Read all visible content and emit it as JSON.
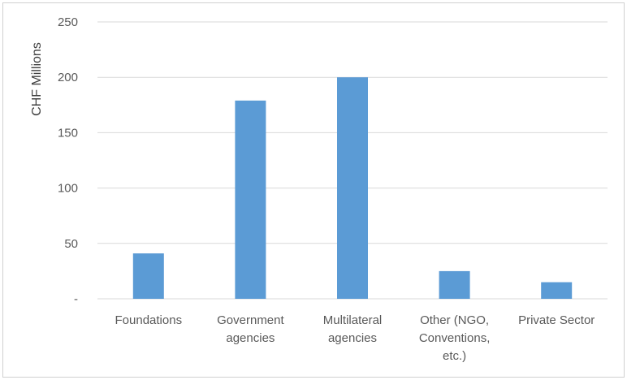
{
  "chart_data": {
    "type": "bar",
    "title": "",
    "xlabel": "",
    "ylabel": "CHF Millions",
    "ylim": [
      0,
      250
    ],
    "yticks": [
      0,
      50,
      100,
      150,
      200,
      250
    ],
    "ytick_labels": [
      "-",
      "50",
      "100",
      "150",
      "200",
      "250"
    ],
    "grid": true,
    "legend": "none",
    "bar_color": "#5b9bd5",
    "categories": [
      [
        "Foundations"
      ],
      [
        "Government",
        "agencies"
      ],
      [
        "Multilateral",
        "agencies"
      ],
      [
        "Other (NGO,",
        "Conventions,",
        "etc.)"
      ],
      [
        "Private Sector"
      ]
    ],
    "values": [
      41,
      179,
      200,
      25,
      15
    ]
  }
}
